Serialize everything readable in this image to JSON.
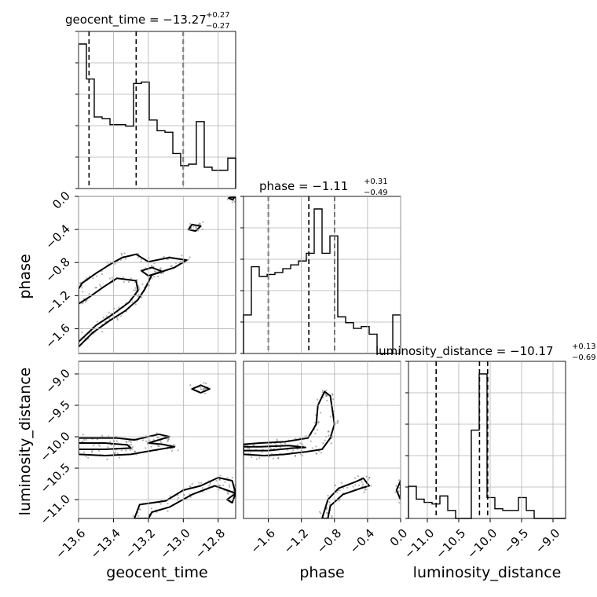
{
  "chart_data": {
    "type": "corner",
    "parameters": [
      {
        "name": "geocent_time",
        "axis_label": "geocent_time",
        "title_main": "geocent_time = −13.27",
        "title_sup": "+0.27",
        "title_sub": "−0.27",
        "range": [
          -13.6,
          -12.7
        ],
        "ticks": [
          -13.6,
          -13.4,
          -13.2,
          -13.0,
          -12.8
        ],
        "tick_labels": [
          "−13.6",
          "−13.4",
          "−13.2",
          "−13.0",
          "−12.8"
        ],
        "quantiles": [
          -13.54,
          -13.27,
          -13.0
        ],
        "hist_edges": [
          -13.6,
          -13.555,
          -13.51,
          -13.465,
          -13.42,
          -13.375,
          -13.33,
          -13.285,
          -13.24,
          -13.195,
          -13.15,
          -13.105,
          -13.06,
          -13.015,
          -12.97,
          -12.925,
          -12.88,
          -12.835,
          -12.79,
          -12.745,
          -12.7
        ],
        "hist_counts": [
          0.95,
          0.72,
          0.47,
          0.46,
          0.42,
          0.42,
          0.41,
          0.69,
          0.7,
          0.45,
          0.38,
          0.37,
          0.23,
          0.15,
          0.16,
          0.44,
          0.14,
          0.12,
          0.12,
          0.2
        ]
      },
      {
        "name": "phase",
        "axis_label": "phase",
        "title_main": "phase = −1.11",
        "title_sup": "+0.31",
        "title_sub": "−0.49",
        "range": [
          -1.9,
          0.0
        ],
        "ticks": [
          -1.6,
          -1.2,
          -0.8,
          -0.4,
          0.0
        ],
        "tick_labels": [
          "−1.6",
          "−1.2",
          "−0.8",
          "−0.4",
          "0.0"
        ],
        "quantiles": [
          -1.6,
          -1.11,
          -0.8
        ],
        "hist_edges": [
          -1.9,
          -1.805,
          -1.71,
          -1.615,
          -1.52,
          -1.425,
          -1.33,
          -1.235,
          -1.14,
          -1.045,
          -0.95,
          -0.855,
          -0.76,
          -0.665,
          -0.57,
          -0.475,
          -0.38,
          -0.285,
          -0.19,
          -0.095,
          0.0
        ],
        "hist_counts": [
          0.2,
          0.45,
          0.4,
          0.41,
          0.42,
          0.44,
          0.46,
          0.48,
          0.52,
          0.75,
          0.52,
          0.61,
          0.19,
          0.16,
          0.13,
          0.14,
          0.1,
          0.0,
          0.0,
          0.2
        ]
      },
      {
        "name": "luminosity_distance",
        "axis_label": "luminosity_distance",
        "title_main": "luminosity_distance = −10.17",
        "title_sup": "+0.13",
        "title_sub": "−0.69",
        "range": [
          -11.3,
          -8.8
        ],
        "ticks": [
          -11.0,
          -10.5,
          -10.0,
          -9.5,
          -9.0
        ],
        "tick_labels": [
          "−11.0",
          "−10.5",
          "−10.0",
          "−9.5",
          "−9.0"
        ],
        "quantiles": [
          -10.86,
          -10.17,
          -10.04
        ],
        "hist_edges": [
          -11.3,
          -11.175,
          -11.05,
          -10.925,
          -10.8,
          -10.675,
          -10.55,
          -10.425,
          -10.3,
          -10.175,
          -10.05,
          -9.925,
          -9.8,
          -9.675,
          -9.55,
          -9.425,
          -9.3,
          -9.175,
          -9.05,
          -8.925,
          -8.8
        ],
        "hist_counts": [
          0.2,
          0.12,
          0.1,
          0.09,
          0.14,
          0.05,
          0.0,
          0.0,
          0.55,
          0.9,
          0.13,
          0.06,
          0.05,
          0.05,
          0.13,
          0.05,
          0.0,
          0.0,
          0.0,
          0.0
        ]
      }
    ],
    "pair_plots": [
      {
        "x": "geocent_time",
        "y": "phase",
        "contours": [
          [
            [
              -13.6,
              -1.82
            ],
            [
              -13.52,
              -1.65
            ],
            [
              -13.42,
              -1.5
            ],
            [
              -13.33,
              -1.38
            ],
            [
              -13.26,
              -1.25
            ],
            [
              -13.22,
              -1.12
            ],
            [
              -13.18,
              -0.95
            ],
            [
              -13.05,
              -0.86
            ],
            [
              -12.98,
              -0.77
            ],
            [
              -13.08,
              -0.74
            ],
            [
              -13.2,
              -0.79
            ],
            [
              -13.27,
              -0.7
            ],
            [
              -13.35,
              -0.74
            ],
            [
              -13.41,
              -0.81
            ],
            [
              -13.5,
              -0.93
            ],
            [
              -13.58,
              -1.05
            ],
            [
              -13.6,
              -1.12
            ]
          ],
          [
            [
              -13.6,
              -1.76
            ],
            [
              -13.5,
              -1.56
            ],
            [
              -13.4,
              -1.42
            ],
            [
              -13.31,
              -1.28
            ],
            [
              -13.26,
              -1.14
            ],
            [
              -13.27,
              -1.02
            ],
            [
              -13.38,
              -0.99
            ],
            [
              -13.46,
              -1.1
            ],
            [
              -13.54,
              -1.22
            ],
            [
              -13.6,
              -1.3
            ]
          ],
          [
            [
              -13.2,
              -0.96
            ],
            [
              -13.12,
              -0.91
            ],
            [
              -13.18,
              -0.86
            ],
            [
              -13.24,
              -0.9
            ]
          ],
          [
            [
              -12.93,
              -0.42
            ],
            [
              -12.9,
              -0.36
            ],
            [
              -12.95,
              -0.34
            ],
            [
              -12.97,
              -0.4
            ]
          ],
          [
            [
              -12.72,
              -0.04
            ],
            [
              -12.7,
              0.0
            ],
            [
              -12.74,
              -0.02
            ]
          ]
        ]
      },
      {
        "x": "geocent_time",
        "y": "luminosity_distance",
        "contours": [
          [
            [
              -13.6,
              -10.28
            ],
            [
              -13.45,
              -10.3
            ],
            [
              -13.3,
              -10.28
            ],
            [
              -13.18,
              -10.22
            ],
            [
              -13.05,
              -10.16
            ],
            [
              -13.12,
              -10.12
            ],
            [
              -13.2,
              -10.1
            ],
            [
              -13.08,
              -10.0
            ],
            [
              -13.14,
              -9.96
            ],
            [
              -13.28,
              -10.05
            ],
            [
              -13.38,
              -10.02
            ],
            [
              -13.5,
              -10.02
            ],
            [
              -13.6,
              -10.02
            ]
          ],
          [
            [
              -13.6,
              -10.2
            ],
            [
              -13.45,
              -10.2
            ],
            [
              -13.3,
              -10.18
            ],
            [
              -13.32,
              -10.13
            ],
            [
              -13.45,
              -10.1
            ],
            [
              -13.6,
              -10.1
            ]
          ],
          [
            [
              -12.9,
              -9.3
            ],
            [
              -12.85,
              -9.24
            ],
            [
              -12.9,
              -9.18
            ],
            [
              -12.95,
              -9.24
            ]
          ],
          [
            [
              -13.28,
              -11.3
            ],
            [
              -13.25,
              -11.08
            ],
            [
              -13.1,
              -11.02
            ],
            [
              -13.0,
              -10.85
            ],
            [
              -12.9,
              -10.78
            ],
            [
              -12.8,
              -10.65
            ],
            [
              -12.72,
              -10.7
            ],
            [
              -12.7,
              -10.9
            ],
            [
              -12.75,
              -10.85
            ],
            [
              -12.82,
              -10.78
            ],
            [
              -12.95,
              -10.92
            ],
            [
              -13.08,
              -11.12
            ],
            [
              -13.18,
              -11.2
            ],
            [
              -13.2,
              -11.3
            ]
          ],
          [
            [
              -12.75,
              -11.0
            ],
            [
              -12.7,
              -10.9
            ],
            [
              -12.72,
              -11.05
            ]
          ]
        ]
      },
      {
        "x": "phase",
        "y": "luminosity_distance",
        "contours": [
          [
            [
              -1.9,
              -10.28
            ],
            [
              -1.65,
              -10.3
            ],
            [
              -1.4,
              -10.28
            ],
            [
              -1.15,
              -10.24
            ],
            [
              -0.95,
              -10.2
            ],
            [
              -0.85,
              -10.02
            ],
            [
              -0.8,
              -9.8
            ],
            [
              -0.85,
              -9.35
            ],
            [
              -0.92,
              -9.28
            ],
            [
              -1.0,
              -9.5
            ],
            [
              -1.02,
              -9.8
            ],
            [
              -1.12,
              -10.02
            ],
            [
              -1.4,
              -10.08
            ],
            [
              -1.7,
              -10.1
            ],
            [
              -1.9,
              -10.12
            ]
          ],
          [
            [
              -1.9,
              -10.22
            ],
            [
              -1.6,
              -10.22
            ],
            [
              -1.3,
              -10.18
            ],
            [
              -1.15,
              -10.17
            ],
            [
              -1.35,
              -10.14
            ],
            [
              -1.7,
              -10.16
            ],
            [
              -1.9,
              -10.16
            ]
          ],
          [
            [
              -0.95,
              -11.3
            ],
            [
              -0.88,
              -11.0
            ],
            [
              -0.75,
              -10.82
            ],
            [
              -0.55,
              -10.72
            ],
            [
              -0.45,
              -10.66
            ],
            [
              -0.38,
              -10.78
            ],
            [
              -0.48,
              -10.82
            ],
            [
              -0.7,
              -10.92
            ],
            [
              -0.85,
              -11.1
            ],
            [
              -0.88,
              -11.3
            ]
          ],
          [
            [
              -0.05,
              -10.85
            ],
            [
              0.0,
              -10.7
            ],
            [
              0.0,
              -11.0
            ]
          ]
        ]
      }
    ]
  },
  "colors": {
    "line": "#000000",
    "grid": "#b0b0b0",
    "scatter": "#555555",
    "density_fill": "#cfcfcf"
  }
}
